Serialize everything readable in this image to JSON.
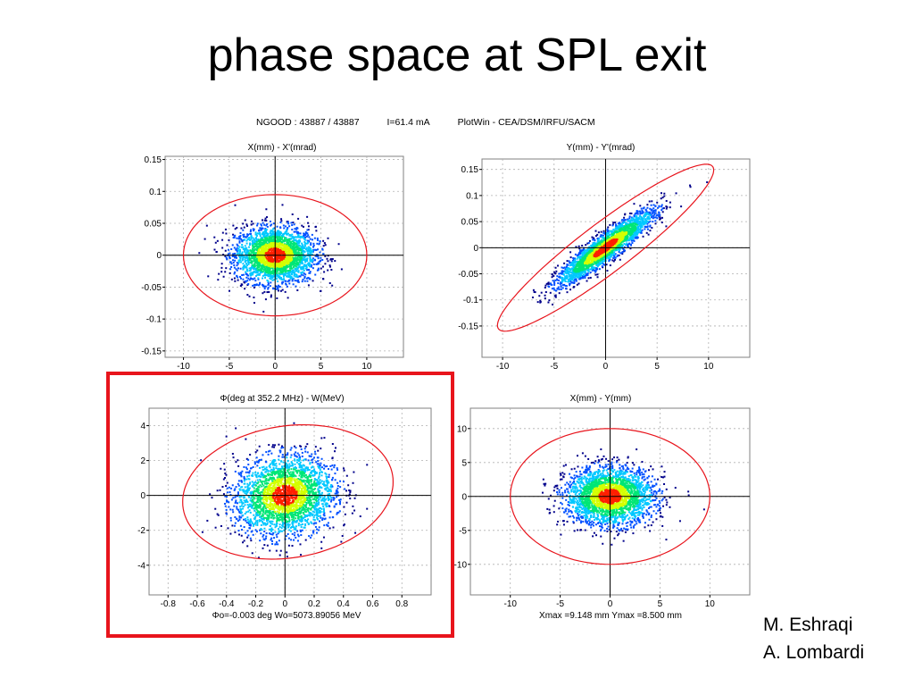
{
  "slide": {
    "title": "phase space at SPL exit",
    "authors": [
      "M. Eshraqi",
      "A. Lombardi"
    ]
  },
  "header": {
    "ngood": "NGOOD : 43887 / 43887",
    "current": "I=61.4 mA",
    "software": "PlotWin - CEA/DSM/IRFU/SACM"
  },
  "colors": {
    "ellipse": "#e8141c",
    "highlight": "#e8141c",
    "density_scale": [
      "#00008b",
      "#0050ff",
      "#00c8ff",
      "#00e676",
      "#d4ff00",
      "#ff2000"
    ]
  },
  "chart_data": [
    {
      "type": "scatter",
      "title": "X(mm) - X'(mrad)",
      "xlim": [
        -12,
        14
      ],
      "ylim": [
        -0.16,
        0.155
      ],
      "xticks": [
        -10,
        -5,
        0,
        5,
        10
      ],
      "yticks": [
        0.15,
        0.1,
        0.05,
        0,
        -0.05,
        -0.1,
        -0.15
      ],
      "ytick_labels": [
        "0.15",
        "0.1",
        "0.05",
        "0",
        "-0.05",
        "-0.1",
        "-0.15"
      ],
      "distribution": {
        "center": [
          0,
          0
        ],
        "sigma_x": 2.2,
        "sigma_y": 0.022,
        "correlation": 0
      },
      "ellipse": {
        "center": [
          0,
          0
        ],
        "semi_x": 10,
        "semi_y": 0.095,
        "correlation": 0
      },
      "grid": true,
      "highlighted": false
    },
    {
      "type": "scatter",
      "title": "Y(mm) - Y'(mrad)",
      "xlim": [
        -12,
        14
      ],
      "ylim": [
        -0.21,
        0.17
      ],
      "xticks": [
        -10,
        -5,
        0,
        5,
        10
      ],
      "yticks": [
        0.15,
        0.1,
        0.05,
        0,
        -0.05,
        -0.1,
        -0.15
      ],
      "ytick_labels": [
        "0.15",
        "0.1",
        "0.05",
        "0",
        "-0.05",
        "-0.1",
        "-0.15"
      ],
      "distribution": {
        "center": [
          0,
          0
        ],
        "sigma_x": 2.3,
        "sigma_y": 0.035,
        "correlation": 0.92
      },
      "ellipse": {
        "center": [
          0,
          0
        ],
        "semi_x": 10.5,
        "semi_y": 0.16,
        "correlation": 0.93
      },
      "grid": true,
      "highlighted": false
    },
    {
      "type": "scatter",
      "title": "Φ(deg at 352.2 MHz) - W(MeV)",
      "footer": "Φo=-0.003 deg  Wo=5073.89056 MeV",
      "xlim": [
        -0.93,
        1.0
      ],
      "ylim": [
        -5.7,
        5.0
      ],
      "xticks": [
        -0.8,
        -0.6,
        -0.4,
        -0.2,
        0,
        0.2,
        0.4,
        0.6,
        0.8
      ],
      "yticks": [
        4,
        2,
        0,
        -2,
        -4
      ],
      "ytick_labels": [
        "4",
        "2",
        "0",
        "-2",
        "-4"
      ],
      "distribution": {
        "center": [
          0,
          0
        ],
        "sigma_x": 0.17,
        "sigma_y": 1.15,
        "correlation": 0.1
      },
      "ellipse": {
        "center": [
          0.02,
          0.2
        ],
        "semi_x": 0.72,
        "semi_y": 3.85,
        "correlation": 0.15
      },
      "grid": true,
      "highlighted": true
    },
    {
      "type": "scatter",
      "title": "X(mm) - Y(mm)",
      "footer": "Xmax =9.148 mm  Ymax =8.500 mm",
      "xlim": [
        -14,
        14
      ],
      "ylim": [
        -14.5,
        13
      ],
      "xticks": [
        -10,
        -5,
        0,
        5,
        10
      ],
      "yticks": [
        10,
        5,
        0,
        -5,
        -10
      ],
      "ytick_labels": [
        "10",
        "5",
        "0",
        "-5",
        "-10"
      ],
      "distribution": {
        "center": [
          0,
          0
        ],
        "sigma_x": 2.2,
        "sigma_y": 2.1,
        "correlation": 0
      },
      "ellipse": {
        "center": [
          0,
          0
        ],
        "semi_x": 10,
        "semi_y": 10,
        "correlation": 0
      },
      "grid": true,
      "highlighted": false
    }
  ]
}
